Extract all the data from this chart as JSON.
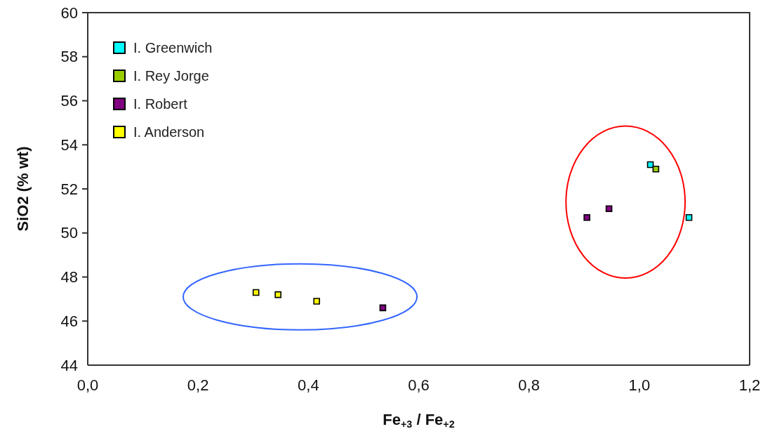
{
  "chart_data": {
    "type": "scatter",
    "xlabel": "Fe$_{+3}$ / Fe$_{+2}$",
    "ylabel": "SiO2 (% wt)",
    "xlim": [
      0,
      1.2
    ],
    "xticks": [
      {
        "value": 0,
        "label": "0,0"
      },
      {
        "value": 0.2,
        "label": "0,2"
      },
      {
        "value": 0.4,
        "label": "0,4"
      },
      {
        "value": 0.6,
        "label": "0,6"
      },
      {
        "value": 0.8,
        "label": "0,8"
      },
      {
        "value": 1,
        "label": "1,0"
      },
      {
        "value": 1.2,
        "label": "1,2"
      }
    ],
    "ylim": [
      44,
      60
    ],
    "yticks": [
      44,
      46,
      48,
      50,
      52,
      54,
      56,
      58,
      60
    ],
    "grid": false,
    "legend": "top left",
    "marker": "square",
    "series": [
      {
        "name": "I. Greenwich",
        "color": "#00ffff",
        "x": [
          1.02,
          1.09
        ],
        "values": [
          53.1,
          50.7
        ]
      },
      {
        "name": "I. Rey Jorge",
        "color": "#99cc00",
        "x": [
          1.03
        ],
        "values": [
          52.9
        ]
      },
      {
        "name": "I. Robert",
        "color": "#800080",
        "x": [
          0.905,
          0.945,
          0.535
        ],
        "values": [
          50.7,
          51.1,
          46.6
        ]
      },
      {
        "name": "I. Anderson",
        "color": "#ffff00",
        "x": [
          0.305,
          0.345,
          0.415
        ],
        "values": [
          47.3,
          47.2,
          46.9
        ]
      }
    ]
  }
}
